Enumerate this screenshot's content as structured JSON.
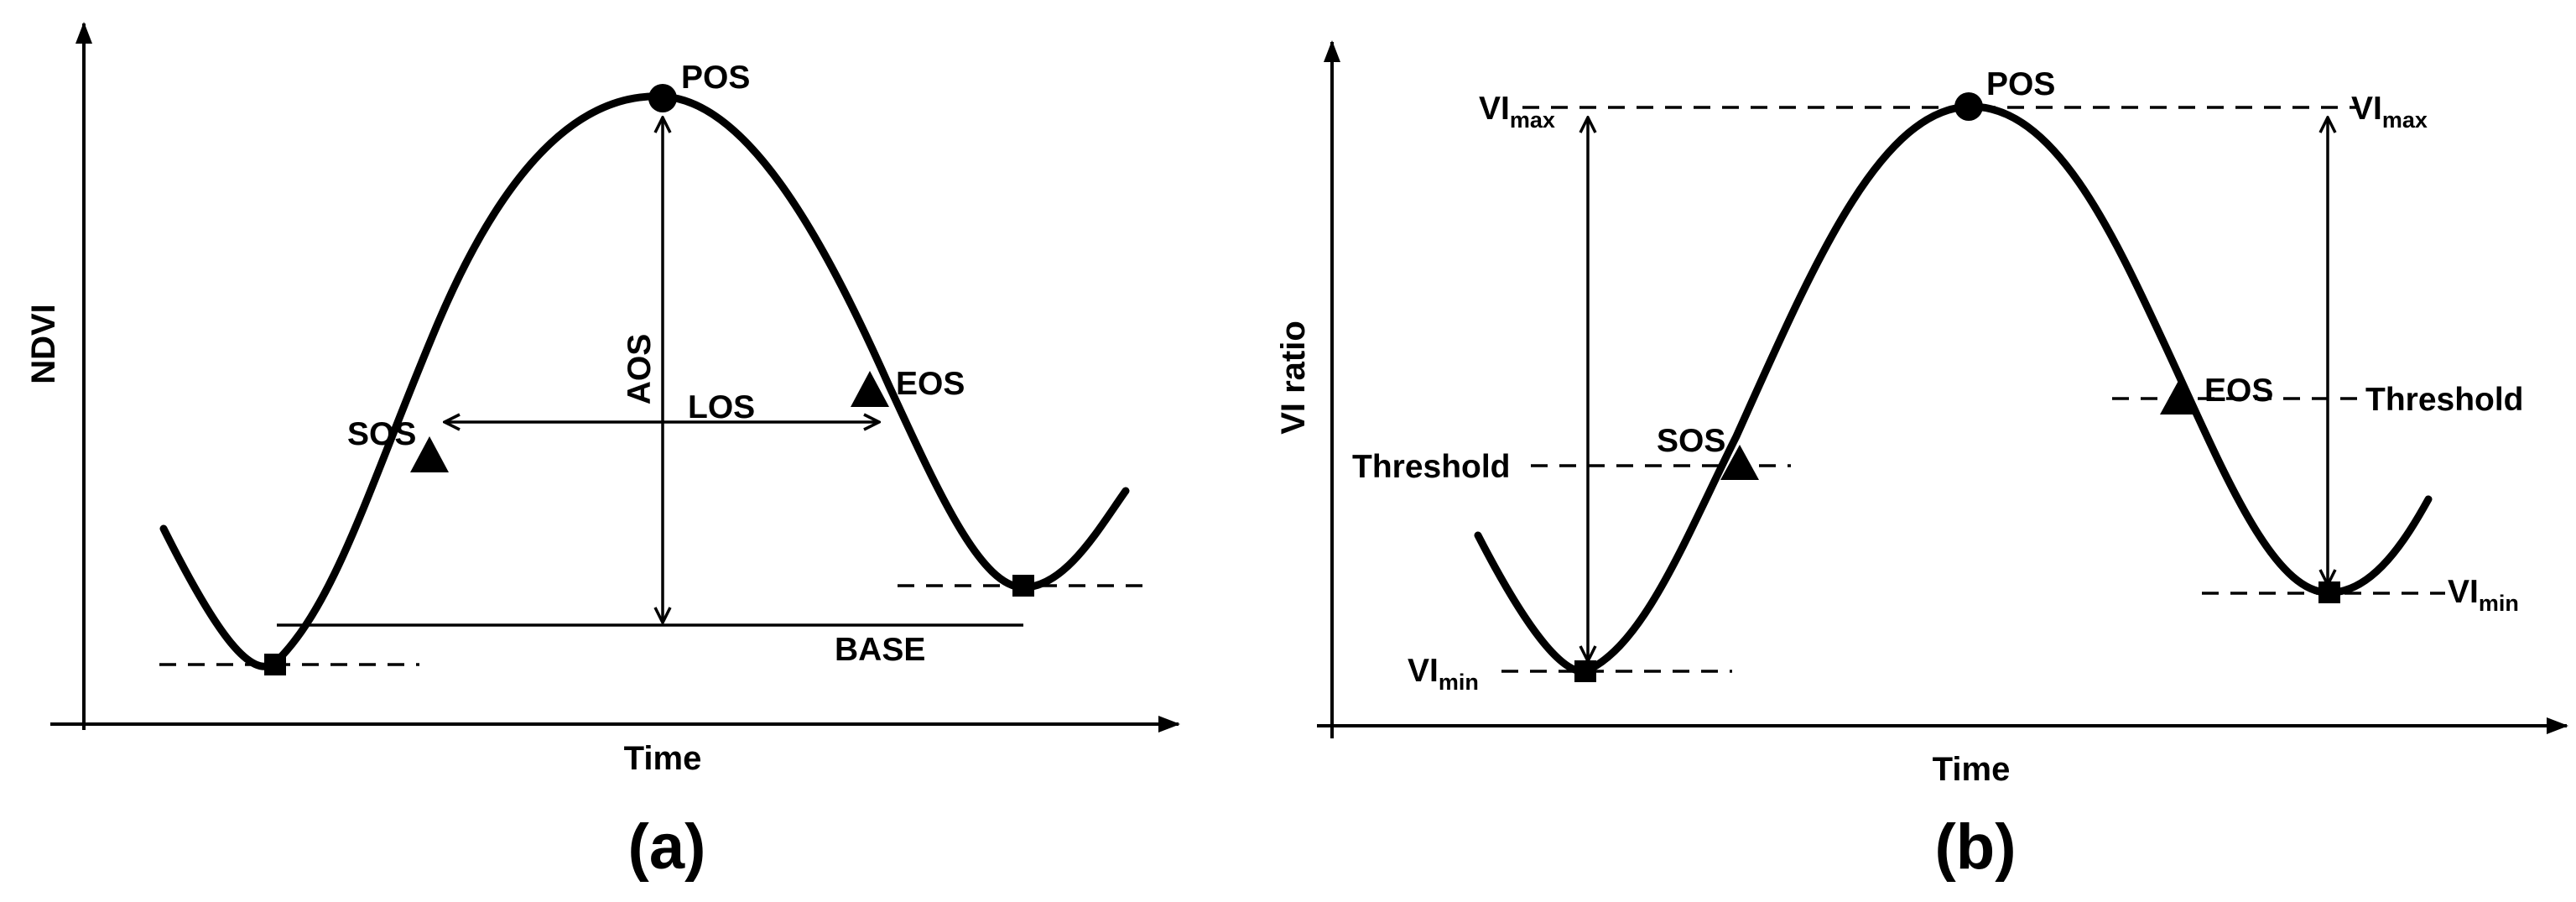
{
  "colors": {
    "ink": "#000000",
    "background": "#ffffff"
  },
  "panel_a": {
    "caption": "(a)",
    "y_axis_title": "NDVI",
    "x_axis_title": "Time",
    "labels": {
      "pos": "POS",
      "sos": "SOS",
      "eos": "EOS",
      "aos": "AOS",
      "los": "LOS",
      "base": "BASE"
    }
  },
  "panel_b": {
    "caption": "(b)",
    "y_axis_title": "VI ratio",
    "x_axis_title": "Time",
    "labels": {
      "pos": "POS",
      "sos": "SOS",
      "eos": "EOS",
      "threshold_left": "Threshold",
      "threshold_right": "Threshold",
      "vi_max_left": {
        "main": "VI",
        "sub": "max"
      },
      "vi_max_right": {
        "main": "VI",
        "sub": "max"
      },
      "vi_min_left": {
        "main": "VI",
        "sub": "min"
      },
      "vi_min_right": {
        "main": "VI",
        "sub": "min"
      }
    }
  }
}
